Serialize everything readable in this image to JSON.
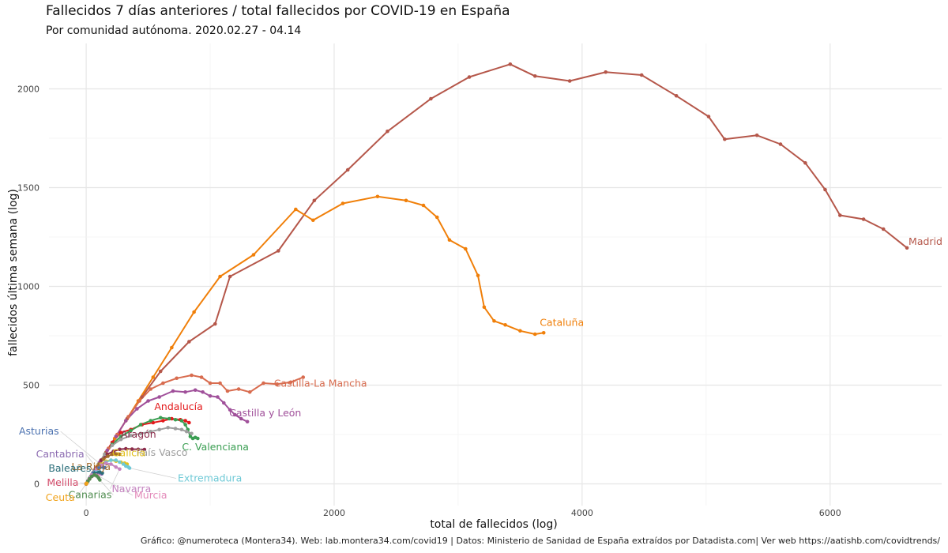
{
  "title": "Fallecidos 7 días anteriores / total fallecidos por COVID-19 en España",
  "subtitle": "Por comunidad autónoma. 2020.02.27 - 04.14",
  "caption": "Gráfico: @numeroteca (Montera34). Web: lab.montera34.com/covid19 | Datos: Ministerio de Sanidad de España extraídos por Datadista.com| Ver web https://aatishb.com/covidtrends/",
  "chart_data": {
    "type": "line",
    "title": "Fallecidos 7 días anteriores / total fallecidos por COVID-19 en España",
    "subtitle": "Por comunidad autónoma. 2020.02.27 - 04.14",
    "xlabel": "total de fallecidos (log)",
    "ylabel": "fallecidos última semana (log)",
    "xlim": [
      -300,
      6900
    ],
    "ylim": [
      -110,
      2230
    ],
    "x_ticks": [
      0,
      2000,
      4000,
      6000
    ],
    "x_tick_labels": [
      "0",
      "2000",
      "4000",
      "6000"
    ],
    "y_ticks": [
      0,
      500,
      1000,
      1500,
      2000
    ],
    "y_tick_labels": [
      "0",
      "500",
      "1000",
      "1500",
      "2000"
    ],
    "grid": true,
    "legend": "none",
    "series": [
      {
        "name": "Madrid",
        "color": "#b5574a",
        "x": [
          0,
          50,
          100,
          160,
          240,
          330,
          450,
          600,
          830,
          1040,
          1160,
          1550,
          1840,
          2110,
          2430,
          2780,
          3090,
          3420,
          3620,
          3900,
          4190,
          4480,
          4760,
          5020,
          5150,
          5410,
          5600,
          5800,
          5960,
          6080,
          6270,
          6430,
          6620
        ],
        "y": [
          0,
          50,
          100,
          160,
          240,
          330,
          440,
          570,
          720,
          810,
          1050,
          1180,
          1435,
          1590,
          1785,
          1950,
          2060,
          2125,
          2065,
          2040,
          2085,
          2070,
          1965,
          1860,
          1745,
          1765,
          1720,
          1625,
          1490,
          1360,
          1340,
          1290,
          1195
        ]
      },
      {
        "name": "Cataluña",
        "color": "#f07f09",
        "x": [
          0,
          40,
          90,
          150,
          230,
          320,
          420,
          540,
          690,
          870,
          1080,
          1350,
          1690,
          1830,
          2070,
          2350,
          2580,
          2720,
          2830,
          2930,
          3060,
          3160,
          3210,
          3290,
          3380,
          3500,
          3620,
          3690
        ],
        "y": [
          0,
          40,
          90,
          150,
          230,
          320,
          420,
          540,
          690,
          870,
          1050,
          1160,
          1390,
          1335,
          1420,
          1455,
          1435,
          1410,
          1350,
          1235,
          1190,
          1055,
          895,
          825,
          805,
          775,
          758,
          765
        ]
      },
      {
        "name": "Castilla-La Mancha",
        "color": "#d86c4f",
        "x": [
          0,
          30,
          70,
          120,
          180,
          250,
          340,
          430,
          520,
          620,
          730,
          850,
          930,
          1000,
          1080,
          1140,
          1230,
          1320,
          1430,
          1540,
          1650,
          1750
        ],
        "y": [
          0,
          30,
          70,
          120,
          180,
          250,
          340,
          420,
          480,
          510,
          535,
          550,
          540,
          510,
          510,
          470,
          480,
          465,
          510,
          505,
          515,
          540
        ]
      },
      {
        "name": "Castilla y León",
        "color": "#a0509a",
        "x": [
          0,
          30,
          70,
          110,
          170,
          240,
          320,
          410,
          500,
          590,
          700,
          800,
          880,
          940,
          1000,
          1060,
          1110,
          1160,
          1200,
          1250,
          1300
        ],
        "y": [
          0,
          30,
          70,
          110,
          170,
          240,
          320,
          380,
          420,
          440,
          470,
          465,
          475,
          465,
          445,
          440,
          410,
          375,
          350,
          330,
          315
        ]
      },
      {
        "name": "Andalucía",
        "color": "#e31a1c",
        "x": [
          0,
          25,
          60,
          100,
          150,
          210,
          280,
          360,
          450,
          540,
          620,
          690,
          760,
          800,
          830
        ],
        "y": [
          0,
          25,
          60,
          100,
          150,
          210,
          260,
          275,
          300,
          310,
          320,
          330,
          325,
          320,
          310
        ]
      },
      {
        "name": "C. Valenciana",
        "color": "#3a9e52",
        "x": [
          0,
          25,
          60,
          100,
          150,
          210,
          280,
          360,
          440,
          520,
          600,
          670,
          720,
          770,
          800,
          820,
          840,
          860,
          880,
          900
        ],
        "y": [
          0,
          25,
          60,
          100,
          150,
          200,
          240,
          270,
          300,
          320,
          335,
          330,
          325,
          320,
          300,
          275,
          240,
          230,
          235,
          230
        ]
      },
      {
        "name": "País Vasco",
        "color": "#9e9e9e",
        "x": [
          0,
          25,
          60,
          100,
          150,
          210,
          280,
          360,
          440,
          520,
          590,
          660,
          720,
          770,
          810,
          850
        ],
        "y": [
          0,
          25,
          60,
          100,
          150,
          195,
          225,
          245,
          255,
          265,
          275,
          285,
          280,
          275,
          265,
          255
        ]
      },
      {
        "name": "Aragón",
        "color": "#8c2d4c",
        "x": [
          0,
          20,
          45,
          80,
          120,
          170,
          220,
          270,
          320,
          370,
          420,
          470
        ],
        "y": [
          0,
          20,
          45,
          80,
          120,
          150,
          165,
          175,
          178,
          176,
          175,
          174
        ]
      },
      {
        "name": "La Rioja",
        "color": "#a46b2a",
        "x": [
          0,
          20,
          45,
          75,
          105,
          140,
          175,
          210,
          240,
          270
        ],
        "y": [
          0,
          20,
          45,
          75,
          100,
          125,
          140,
          150,
          152,
          150
        ]
      },
      {
        "name": "Asturias",
        "color": "#4c72b0",
        "x": [
          0,
          15,
          35,
          55,
          75,
          95,
          115,
          135,
          150
        ],
        "y": [
          0,
          15,
          35,
          55,
          70,
          80,
          85,
          85,
          82
        ]
      },
      {
        "name": "Cantabria",
        "color": "#8c6bb1",
        "x": [
          0,
          15,
          30,
          50,
          70,
          90,
          110,
          125
        ],
        "y": [
          0,
          15,
          30,
          45,
          55,
          58,
          55,
          50
        ]
      },
      {
        "name": "Baleares",
        "color": "#2b6e7a",
        "x": [
          0,
          15,
          30,
          50,
          70,
          90,
          110,
          130
        ],
        "y": [
          0,
          15,
          30,
          45,
          55,
          60,
          60,
          55
        ]
      },
      {
        "name": "Galicia",
        "color": "#e2c01c",
        "x": [
          0,
          20,
          45,
          80,
          120,
          160,
          200,
          240,
          280,
          310,
          330
        ],
        "y": [
          0,
          20,
          45,
          75,
          100,
          115,
          120,
          115,
          110,
          105,
          100
        ]
      },
      {
        "name": "Extremadura",
        "color": "#6ec9d6",
        "x": [
          0,
          20,
          45,
          80,
          120,
          160,
          200,
          240,
          270,
          300,
          320,
          340,
          350
        ],
        "y": [
          0,
          20,
          45,
          70,
          95,
          110,
          120,
          120,
          110,
          100,
          90,
          85,
          80
        ]
      },
      {
        "name": "Navarra",
        "color": "#c484c0",
        "x": [
          0,
          20,
          45,
          80,
          120,
          160,
          200,
          240,
          270
        ],
        "y": [
          0,
          20,
          45,
          75,
          95,
          105,
          100,
          85,
          75
        ]
      },
      {
        "name": "Murcia",
        "color": "#e389b9",
        "x": [
          0,
          10,
          22,
          35,
          50,
          65,
          80,
          95
        ],
        "y": [
          0,
          10,
          22,
          32,
          40,
          44,
          44,
          42
        ]
      },
      {
        "name": "Canarias",
        "color": "#4f8c4f",
        "x": [
          0,
          12,
          28,
          45,
          65,
          85,
          100,
          110
        ],
        "y": [
          0,
          12,
          25,
          38,
          45,
          40,
          30,
          20
        ]
      },
      {
        "name": "Melilla",
        "color": "#d44d6c",
        "x": [
          0,
          1,
          2
        ],
        "y": [
          0,
          1,
          2
        ]
      },
      {
        "name": "Ceuta",
        "color": "#f0a21a",
        "x": [
          0,
          2,
          4
        ],
        "y": [
          0,
          2,
          3
        ]
      }
    ]
  }
}
